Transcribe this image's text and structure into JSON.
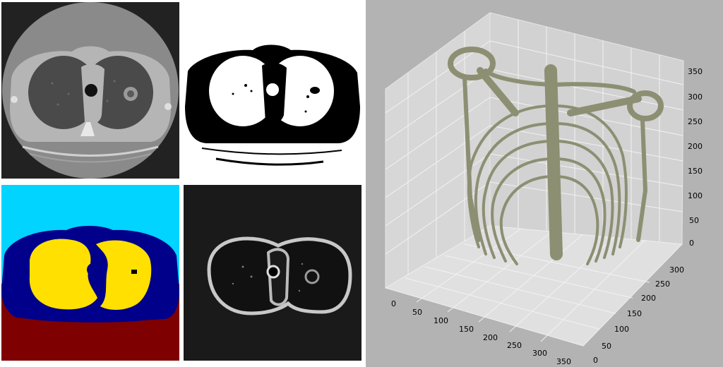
{
  "panels": {
    "ct_slice": {
      "icon": "ct-axial-slice"
    },
    "binary_mask": {
      "icon": "threshold-mask"
    },
    "segmentation": {
      "colors": {
        "air": "#00d4ff",
        "body": "#00008b",
        "lungs": "#ffe000",
        "table": "#7f0000"
      }
    },
    "edges": {
      "icon": "edge-map"
    }
  },
  "plot3d": {
    "mesh_color": "#8c8f72",
    "background": "#b3b3b3",
    "z_ticks": [
      "0",
      "50",
      "100",
      "150",
      "200",
      "250",
      "300",
      "350"
    ],
    "x_ticks": [
      "0",
      "50",
      "100",
      "150",
      "200",
      "250",
      "300",
      "350"
    ],
    "y_ticks": [
      "0",
      "50",
      "100",
      "150",
      "200",
      "250",
      "300"
    ]
  }
}
